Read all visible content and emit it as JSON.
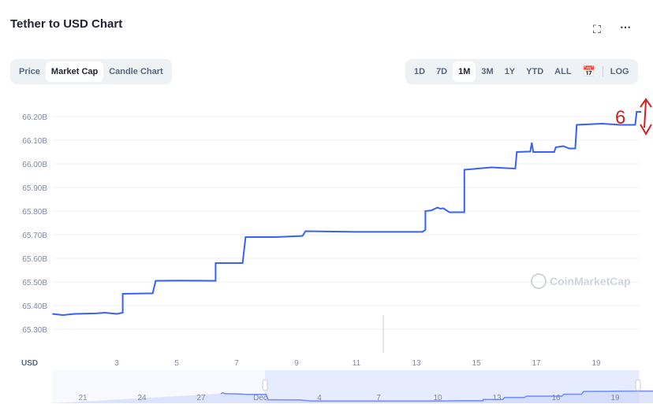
{
  "header": {
    "title": "Tether to USD Chart",
    "fullscreen_icon": "fullscreen-icon",
    "more_icon": "more-dots-icon"
  },
  "tabs": [
    {
      "label": "Price"
    },
    {
      "label": "Market Cap",
      "active": true
    },
    {
      "label": "Candle Chart"
    }
  ],
  "ranges": [
    {
      "label": "1D"
    },
    {
      "label": "7D"
    },
    {
      "label": "1M",
      "active": true
    },
    {
      "label": "3M"
    },
    {
      "label": "1Y"
    },
    {
      "label": "YTD"
    },
    {
      "label": "ALL"
    }
  ],
  "calendar_icon": "calendar-icon",
  "log_label": "LOG",
  "watermark": "CoinMarketCap",
  "annotation": {
    "text": "6",
    "color": "#d32020"
  },
  "chart_data": {
    "type": "line",
    "color": "#3861fb",
    "currency_label": "USD",
    "y_ticks": [
      "66.20B",
      "66.10B",
      "66.00B",
      "65.90B",
      "65.80B",
      "65.70B",
      "65.60B",
      "65.50B",
      "65.40B",
      "65.30B"
    ],
    "y_tick_values": [
      66.2,
      66.1,
      66.0,
      65.9,
      65.8,
      65.7,
      65.6,
      65.5,
      65.4,
      65.3
    ],
    "ylim": [
      65.27,
      66.25
    ],
    "x_ticks": [
      "3",
      "5",
      "7",
      "9",
      "11",
      "13",
      "15",
      "17",
      "19"
    ],
    "x_tick_values": [
      3,
      5,
      7,
      9,
      11,
      13,
      15,
      17,
      19
    ],
    "xlim": [
      0.85,
      20.5
    ],
    "grid": true,
    "points": [
      [
        0.85,
        65.365
      ],
      [
        1.2,
        65.36
      ],
      [
        1.6,
        65.365
      ],
      [
        2.3,
        65.367
      ],
      [
        2.6,
        65.37
      ],
      [
        3.0,
        65.365
      ],
      [
        3.2,
        65.37
      ],
      [
        3.2,
        65.45
      ],
      [
        4.2,
        65.452
      ],
      [
        4.3,
        65.505
      ],
      [
        5.0,
        65.506
      ],
      [
        6.2,
        65.505
      ],
      [
        6.3,
        65.505
      ],
      [
        6.3,
        65.58
      ],
      [
        7.2,
        65.58
      ],
      [
        7.3,
        65.69
      ],
      [
        8.3,
        65.69
      ],
      [
        9.2,
        65.695
      ],
      [
        9.3,
        65.715
      ],
      [
        11,
        65.712
      ],
      [
        13.2,
        65.712
      ],
      [
        13.3,
        65.72
      ],
      [
        13.3,
        65.8
      ],
      [
        13.5,
        65.803
      ],
      [
        13.7,
        65.815
      ],
      [
        13.8,
        65.81
      ],
      [
        13.9,
        65.812
      ],
      [
        14.1,
        65.795
      ],
      [
        14.6,
        65.795
      ],
      [
        14.6,
        65.975
      ],
      [
        15.5,
        65.985
      ],
      [
        16.3,
        65.98
      ],
      [
        16.35,
        66.05
      ],
      [
        16.8,
        66.052
      ],
      [
        16.85,
        66.09
      ],
      [
        16.9,
        66.05
      ],
      [
        17.6,
        66.05
      ],
      [
        17.65,
        66.07
      ],
      [
        17.9,
        66.075
      ],
      [
        18.1,
        66.065
      ],
      [
        18.3,
        66.065
      ],
      [
        18.35,
        66.165
      ],
      [
        19.2,
        66.17
      ],
      [
        19.8,
        66.165
      ],
      [
        20.3,
        66.165
      ],
      [
        20.35,
        66.22
      ],
      [
        20.5,
        66.22
      ]
    ],
    "navigator": {
      "x_ticks": [
        "21",
        "24",
        "27",
        "Dec",
        "4",
        "7",
        "10",
        "13",
        "16",
        "19"
      ],
      "points": [
        [
          -1,
          65.6
        ],
        [
          -0.9,
          65.64
        ],
        [
          -0.8,
          65.6
        ],
        [
          0,
          65.59
        ],
        [
          0.3,
          65.57
        ],
        [
          1.3,
          65.57
        ],
        [
          1.4,
          65.36
        ],
        [
          3,
          65.35
        ],
        [
          3.6,
          65.31
        ],
        [
          10,
          65.31
        ],
        [
          11.2,
          65.32
        ],
        [
          12.3,
          65.32
        ],
        [
          12.3,
          65.37
        ],
        [
          13.3,
          65.37
        ],
        [
          13.4,
          65.45
        ],
        [
          14.4,
          65.45
        ],
        [
          14.5,
          65.5
        ],
        [
          16.3,
          65.5
        ],
        [
          16.4,
          65.58
        ],
        [
          17.3,
          65.58
        ],
        [
          17.4,
          65.69
        ],
        [
          19.3,
          65.7
        ],
        [
          23.3,
          65.71
        ],
        [
          23.4,
          65.8
        ],
        [
          24.6,
          65.8
        ],
        [
          24.7,
          65.97
        ],
        [
          26.3,
          65.98
        ],
        [
          26.4,
          66.05
        ],
        [
          28.3,
          66.06
        ],
        [
          28.4,
          66.16
        ],
        [
          30.2,
          66.17
        ],
        [
          30.3,
          66.22
        ]
      ],
      "selected_from": "Dec 1",
      "selected_to": "Dec 20"
    }
  }
}
